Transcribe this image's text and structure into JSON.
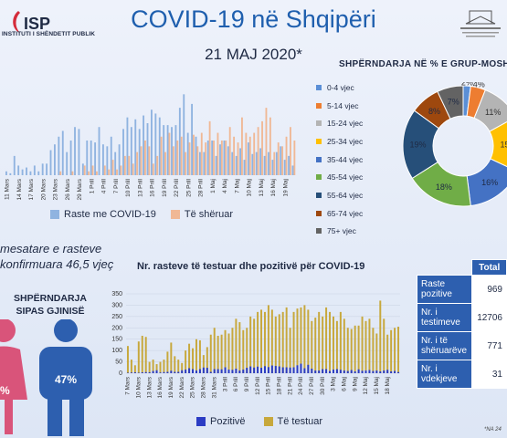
{
  "header": {
    "logo_initials": "ISP",
    "logo_text": "INSTITUTI I SHËNDETIT PUBLIK",
    "title": "COVID-19 në Shqipëri",
    "date": "21 MAJ 2020*"
  },
  "colors": {
    "new_cases": "#8fb3e0",
    "recovered": "#f0b895",
    "positive": "#2b3cc4",
    "tested": "#c7a83c",
    "female": "#d9547a",
    "male": "#2d5faf",
    "accent": "#1f5fae"
  },
  "age_section": {
    "title": "SHPËRNDARJA NË % E GRUP-MOSHAVE"
  },
  "mean_age_text": "mesatare e rasteve\nkonfirmuara 46,5 vjeç",
  "gender_section": {
    "title": "SHPËRNDARJA SIPAS GJINISË",
    "female_pct": "%",
    "male_pct": "47%"
  },
  "bottom_section": {
    "title": "Nr. rasteve të testuar dhe pozitivë për COVID-19"
  },
  "table": {
    "header": "Total",
    "rows": [
      {
        "label": "Raste pozitive",
        "value": "969"
      },
      {
        "label": "Nr. i testimeve",
        "value": "12706"
      },
      {
        "label": "Nr. i të shëruarëve",
        "value": "771"
      },
      {
        "label": "Nr. i vdekjeve",
        "value": "31"
      }
    ]
  },
  "footnote": "*NA 24",
  "chart_data": [
    {
      "type": "bar",
      "title": "",
      "ylim": [
        0,
        45
      ],
      "categories": [
        "11 Mars",
        "12 Mars",
        "13 Mars",
        "14 Mars",
        "15 Mars",
        "16 Mars",
        "17 Mars",
        "18 Mars",
        "19 Mars",
        "20 Mars",
        "21 Mars",
        "22 Mars",
        "23 Mars",
        "24 Mars",
        "25 Mars",
        "26 Mars",
        "27 Mars",
        "28 Mars",
        "29 Mars",
        "30 Mars",
        "31 Mars",
        "1 Prill",
        "2 Prill",
        "3 Prill",
        "4 Prill",
        "5 Prill",
        "6 Prill",
        "7 Prill",
        "8 Prill",
        "9 Prill",
        "10 Prill",
        "11 Prill",
        "12 Prill",
        "13 Prill",
        "14 Prill",
        "15 Prill",
        "16 Prill",
        "17 Prill",
        "18 Prill",
        "19 Prill",
        "20 Prill",
        "21 Prill",
        "22 Prill",
        "23 Prill",
        "24 Prill",
        "25 Prill",
        "26 Prill",
        "27 Prill",
        "28 Prill",
        "29 Prill",
        "30 Prill",
        "1 Maj",
        "2 Maj",
        "3 Maj",
        "4 Maj",
        "5 Maj",
        "6 Maj",
        "7 Maj",
        "8 Maj",
        "9 Maj",
        "10 Maj",
        "11 Maj",
        "12 Maj",
        "13 Maj",
        "14 Maj",
        "15 Maj",
        "16 Maj",
        "17 Maj",
        "18 Maj",
        "19 Maj",
        "20 Maj",
        "21 Maj"
      ],
      "tick_labels": [
        "11 Mars",
        "14 Mars",
        "17 Mars",
        "20 Mars",
        "23 Mars",
        "26 Mars",
        "29 Mars",
        "1 Prill",
        "4 Prill",
        "7 Prill",
        "10 Prill",
        "13 Prill",
        "16 Prill",
        "19 Prill",
        "22 Prill",
        "25 Prill",
        "28 Prill",
        "1 Maj",
        "4 Maj",
        "7 Maj",
        "10 Maj",
        "13 Maj",
        "16 Maj",
        "19 Maj"
      ],
      "series": [
        {
          "name": "Raste me COVID-19",
          "values": [
            2,
            1,
            10,
            5,
            3,
            4,
            2,
            5,
            2,
            6,
            6,
            13,
            16,
            20,
            23,
            12,
            18,
            25,
            24,
            6,
            18,
            18,
            17,
            25,
            16,
            15,
            20,
            12,
            16,
            24,
            30,
            25,
            29,
            24,
            31,
            27,
            34,
            32,
            30,
            26,
            26,
            25,
            26,
            35,
            42,
            22,
            37,
            20,
            12,
            12,
            18,
            18,
            10,
            16,
            18,
            15,
            12,
            10,
            14,
            8,
            17,
            11,
            12,
            14,
            10,
            12,
            8,
            12,
            15,
            8,
            10,
            5
          ]
        },
        {
          "name": "Të shëruar",
          "values": [
            0,
            0,
            0,
            0,
            0,
            0,
            0,
            0,
            0,
            0,
            0,
            0,
            0,
            2,
            0,
            0,
            2,
            0,
            0,
            5,
            2,
            5,
            2,
            0,
            5,
            3,
            8,
            3,
            5,
            10,
            10,
            6,
            12,
            15,
            18,
            15,
            6,
            10,
            20,
            12,
            22,
            15,
            18,
            20,
            12,
            17,
            21,
            15,
            22,
            17,
            28,
            18,
            22,
            18,
            18,
            25,
            20,
            17,
            30,
            22,
            20,
            22,
            25,
            28,
            35,
            30,
            12,
            17,
            15,
            20,
            25,
            18
          ]
        }
      ]
    },
    {
      "type": "bar",
      "title": "Nr. rasteve të testuar dhe pozitivë për COVID-19",
      "ylim": [
        0,
        350
      ],
      "categories": [
        "7 Mars",
        "8 Mars",
        "9 Mars",
        "10 Mars",
        "11 Mars",
        "12 Mars",
        "13 Mars",
        "14 Mars",
        "15 Mars",
        "16 Mars",
        "17 Mars",
        "18 Mars",
        "19 Mars",
        "20 Mars",
        "21 Mars",
        "22 Mars",
        "23 Mars",
        "24 Mars",
        "25 Mars",
        "26 Mars",
        "27 Mars",
        "28 Mars",
        "29 Mars",
        "30 Mars",
        "31 Mars",
        "1 Prill",
        "2 Prill",
        "3 Prill",
        "4 Prill",
        "5 Prill",
        "6 Prill",
        "7 Prill",
        "8 Prill",
        "9 Prill",
        "10 Prill",
        "11 Prill",
        "12 Prill",
        "13 Prill",
        "14 Prill",
        "15 Prill",
        "16 Prill",
        "17 Prill",
        "18 Prill",
        "19 Prill",
        "20 Prill",
        "21 Prill",
        "22 Prill",
        "23 Prill",
        "24 Prill",
        "25 Prill",
        "26 Prill",
        "27 Prill",
        "28 Prill",
        "29 Prill",
        "30 Prill",
        "1 Maj",
        "2 Maj",
        "3 Maj",
        "4 Maj",
        "5 Maj",
        "6 Maj",
        "7 Maj",
        "8 Maj",
        "9 Maj",
        "10 Maj",
        "11 Maj",
        "12 Maj",
        "13 Maj",
        "14 Maj",
        "15 Maj",
        "16 Maj",
        "17 Maj",
        "18 Maj",
        "19 Maj",
        "20 Maj",
        "21 Maj"
      ],
      "tick_labels": [
        "7 Mars",
        "10 Mars",
        "13 Mars",
        "16 Mars",
        "19 Mars",
        "22 Mars",
        "25 Mars",
        "28 Mars",
        "31 Mars",
        "3 Prill",
        "6 Prill",
        "9 Prill",
        "12 Prill",
        "15 Prill",
        "18 Prill",
        "21 Prill",
        "24 Prill",
        "27 Prill",
        "30 Prill",
        "3 Maj",
        "6 Maj",
        "9 Maj",
        "12 Maj",
        "15 Maj",
        "18 Maj"
      ],
      "series": [
        {
          "name": "Pozitivë",
          "values": [
            2,
            3,
            4,
            2,
            4,
            5,
            4,
            10,
            13,
            3,
            5,
            6,
            11,
            6,
            6,
            13,
            16,
            22,
            18,
            12,
            18,
            25,
            24,
            6,
            18,
            18,
            17,
            26,
            16,
            15,
            20,
            12,
            16,
            24,
            30,
            25,
            29,
            24,
            31,
            27,
            34,
            32,
            30,
            26,
            26,
            25,
            26,
            35,
            42,
            22,
            37,
            20,
            12,
            12,
            18,
            18,
            10,
            16,
            18,
            15,
            12,
            10,
            14,
            8,
            17,
            11,
            12,
            14,
            10,
            12,
            8,
            12,
            15,
            8,
            10,
            5
          ]
        },
        {
          "name": "Të testuar",
          "values": [
            120,
            60,
            35,
            140,
            165,
            160,
            50,
            60,
            40,
            50,
            60,
            95,
            135,
            75,
            60,
            45,
            100,
            130,
            110,
            150,
            145,
            80,
            115,
            170,
            200,
            165,
            170,
            190,
            175,
            200,
            240,
            225,
            190,
            200,
            250,
            240,
            270,
            280,
            270,
            300,
            280,
            250,
            260,
            270,
            290,
            200,
            270,
            285,
            290,
            300,
            280,
            230,
            245,
            270,
            250,
            290,
            270,
            250,
            230,
            270,
            240,
            200,
            195,
            210,
            210,
            250,
            230,
            240,
            200,
            175,
            320,
            240,
            170,
            190,
            200,
            205
          ]
        }
      ]
    },
    {
      "type": "pie",
      "title": "SHPËRNDARJA NË % E GRUP-MOSHAVE",
      "categories": [
        "0-4 vjec",
        "5-14 vjec",
        "15-24 vjec",
        "25-34 vjec",
        "35-44 vjec",
        "45-54 vjec",
        "55-64 vjec",
        "65-74 vjec",
        "75+ vjec"
      ],
      "values": [
        2,
        4,
        11,
        15,
        16,
        18,
        19,
        8,
        7
      ]
    }
  ]
}
